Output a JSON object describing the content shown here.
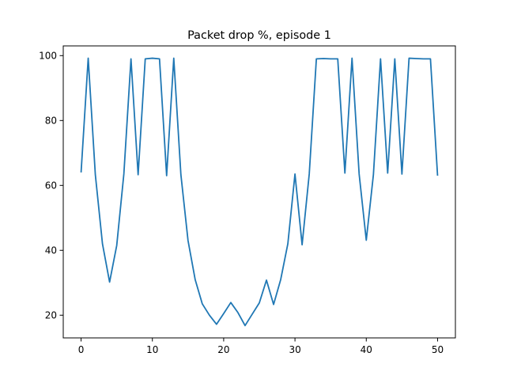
{
  "chart_data": {
    "type": "line",
    "title": "Packet drop %, episode 1",
    "xlabel": "",
    "ylabel": "",
    "xlim": [
      -2.5,
      52.5
    ],
    "ylim": [
      13,
      103
    ],
    "xticks": [
      0,
      10,
      20,
      30,
      40,
      50
    ],
    "yticks": [
      20,
      40,
      60,
      80,
      100
    ],
    "grid": false,
    "series": [
      {
        "color": "#1f77b4",
        "x": [
          0,
          1,
          2,
          3,
          4,
          5,
          6,
          7,
          8,
          9,
          10,
          11,
          12,
          13,
          14,
          15,
          16,
          17,
          18,
          19,
          20,
          21,
          22,
          23,
          24,
          25,
          26,
          27,
          28,
          29,
          30,
          31,
          32,
          33,
          34,
          35,
          36,
          37,
          38,
          39,
          40,
          41,
          42,
          43,
          44,
          45,
          46,
          47,
          48,
          49,
          50
        ],
        "values": [
          64,
          99.2,
          63.3,
          42,
          30.2,
          41.5,
          63.5,
          99,
          63.3,
          99,
          99.2,
          99,
          63,
          99.2,
          63.3,
          43,
          31,
          23.5,
          20,
          17.2,
          20.5,
          23.9,
          20.8,
          16.8,
          20.3,
          23.8,
          30.8,
          23.3,
          31,
          42,
          63.5,
          41.7,
          63.5,
          99,
          99.1,
          99,
          99,
          63.8,
          99.2,
          63.5,
          43.1,
          63.3,
          99,
          63.8,
          99,
          63.5,
          99.2,
          99.1,
          99,
          99,
          63
        ]
      }
    ]
  }
}
